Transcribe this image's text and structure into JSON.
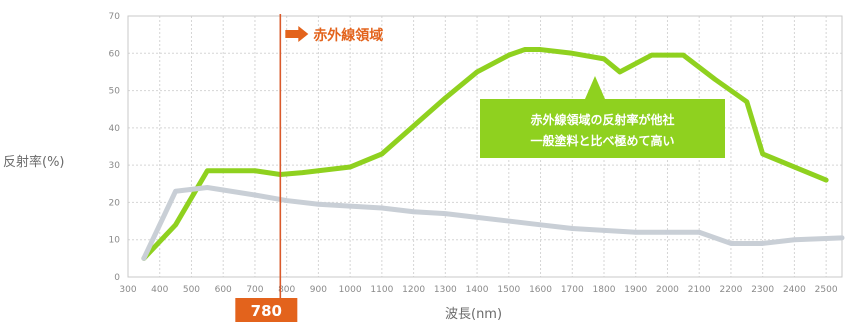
{
  "chart_data": {
    "type": "line",
    "xlabel": "波長(nm)",
    "ylabel": "反射率(%)",
    "xlim": [
      300,
      2550
    ],
    "ylim": [
      0,
      70
    ],
    "x_ticks": [
      300,
      400,
      500,
      600,
      700,
      800,
      900,
      1000,
      1100,
      1200,
      1300,
      1400,
      1500,
      1600,
      1700,
      1800,
      1900,
      2000,
      2100,
      2200,
      2300,
      2400,
      2500
    ],
    "y_ticks": [
      0,
      10,
      20,
      30,
      40,
      50,
      60,
      70
    ],
    "grid": true,
    "series": [
      {
        "color": "#8fd11f",
        "points": [
          [
            350,
            5
          ],
          [
            450,
            14
          ],
          [
            550,
            28.5
          ],
          [
            700,
            28.5
          ],
          [
            780,
            27.5
          ],
          [
            850,
            28
          ],
          [
            1000,
            29.5
          ],
          [
            1100,
            33
          ],
          [
            1300,
            48
          ],
          [
            1400,
            55
          ],
          [
            1500,
            59.5
          ],
          [
            1550,
            61
          ],
          [
            1600,
            61
          ],
          [
            1700,
            60
          ],
          [
            1800,
            58.5
          ],
          [
            1850,
            55
          ],
          [
            1950,
            59.5
          ],
          [
            2050,
            59.5
          ],
          [
            2150,
            53
          ],
          [
            2250,
            47
          ],
          [
            2300,
            33
          ],
          [
            2500,
            26
          ]
        ]
      },
      {
        "color": "#c9cfd6",
        "points": [
          [
            350,
            5
          ],
          [
            450,
            23
          ],
          [
            550,
            24
          ],
          [
            700,
            22
          ],
          [
            800,
            20.5
          ],
          [
            900,
            19.5
          ],
          [
            1000,
            19
          ],
          [
            1100,
            18.5
          ],
          [
            1200,
            17.5
          ],
          [
            1300,
            17
          ],
          [
            1400,
            16
          ],
          [
            1500,
            15
          ],
          [
            1600,
            14
          ],
          [
            1700,
            13
          ],
          [
            1800,
            12.5
          ],
          [
            1900,
            12
          ],
          [
            2000,
            12
          ],
          [
            2100,
            12
          ],
          [
            2200,
            9
          ],
          [
            2300,
            9
          ],
          [
            2400,
            10
          ],
          [
            2550,
            10.5
          ]
        ]
      }
    ],
    "annotations": {
      "marker_value": "780",
      "marker_label": "赤外線領域",
      "callout_line1": "赤外線領域の反射率が他社",
      "callout_line2": "一般塗料と比べ極めて高い"
    },
    "colors": {
      "marker_line": "#d95a2b",
      "marker_fill": "#e3631c",
      "callout_fill": "#8fd11f",
      "grid": "#d5d5d5"
    },
    "icons": {
      "marker_arrow": "arrow-right-icon"
    }
  }
}
